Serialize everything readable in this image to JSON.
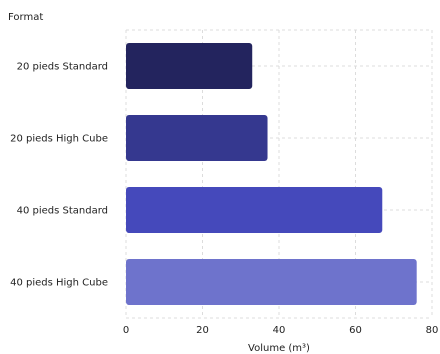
{
  "chart_data": {
    "type": "bar",
    "orientation": "horizontal",
    "ylabel": "Format",
    "xlabel": "Volume (m³)",
    "categories": [
      "20 pieds Standard",
      "20 pieds High Cube",
      "40 pieds Standard",
      "40 pieds High Cube"
    ],
    "values": [
      33,
      37,
      67,
      76
    ],
    "colors": [
      "#23245e",
      "#35388f",
      "#4549bb",
      "#6e73cc"
    ],
    "xlim": [
      0,
      80
    ],
    "xticks": [
      0,
      20,
      40,
      60,
      80
    ],
    "grid": true,
    "legend": "none"
  }
}
